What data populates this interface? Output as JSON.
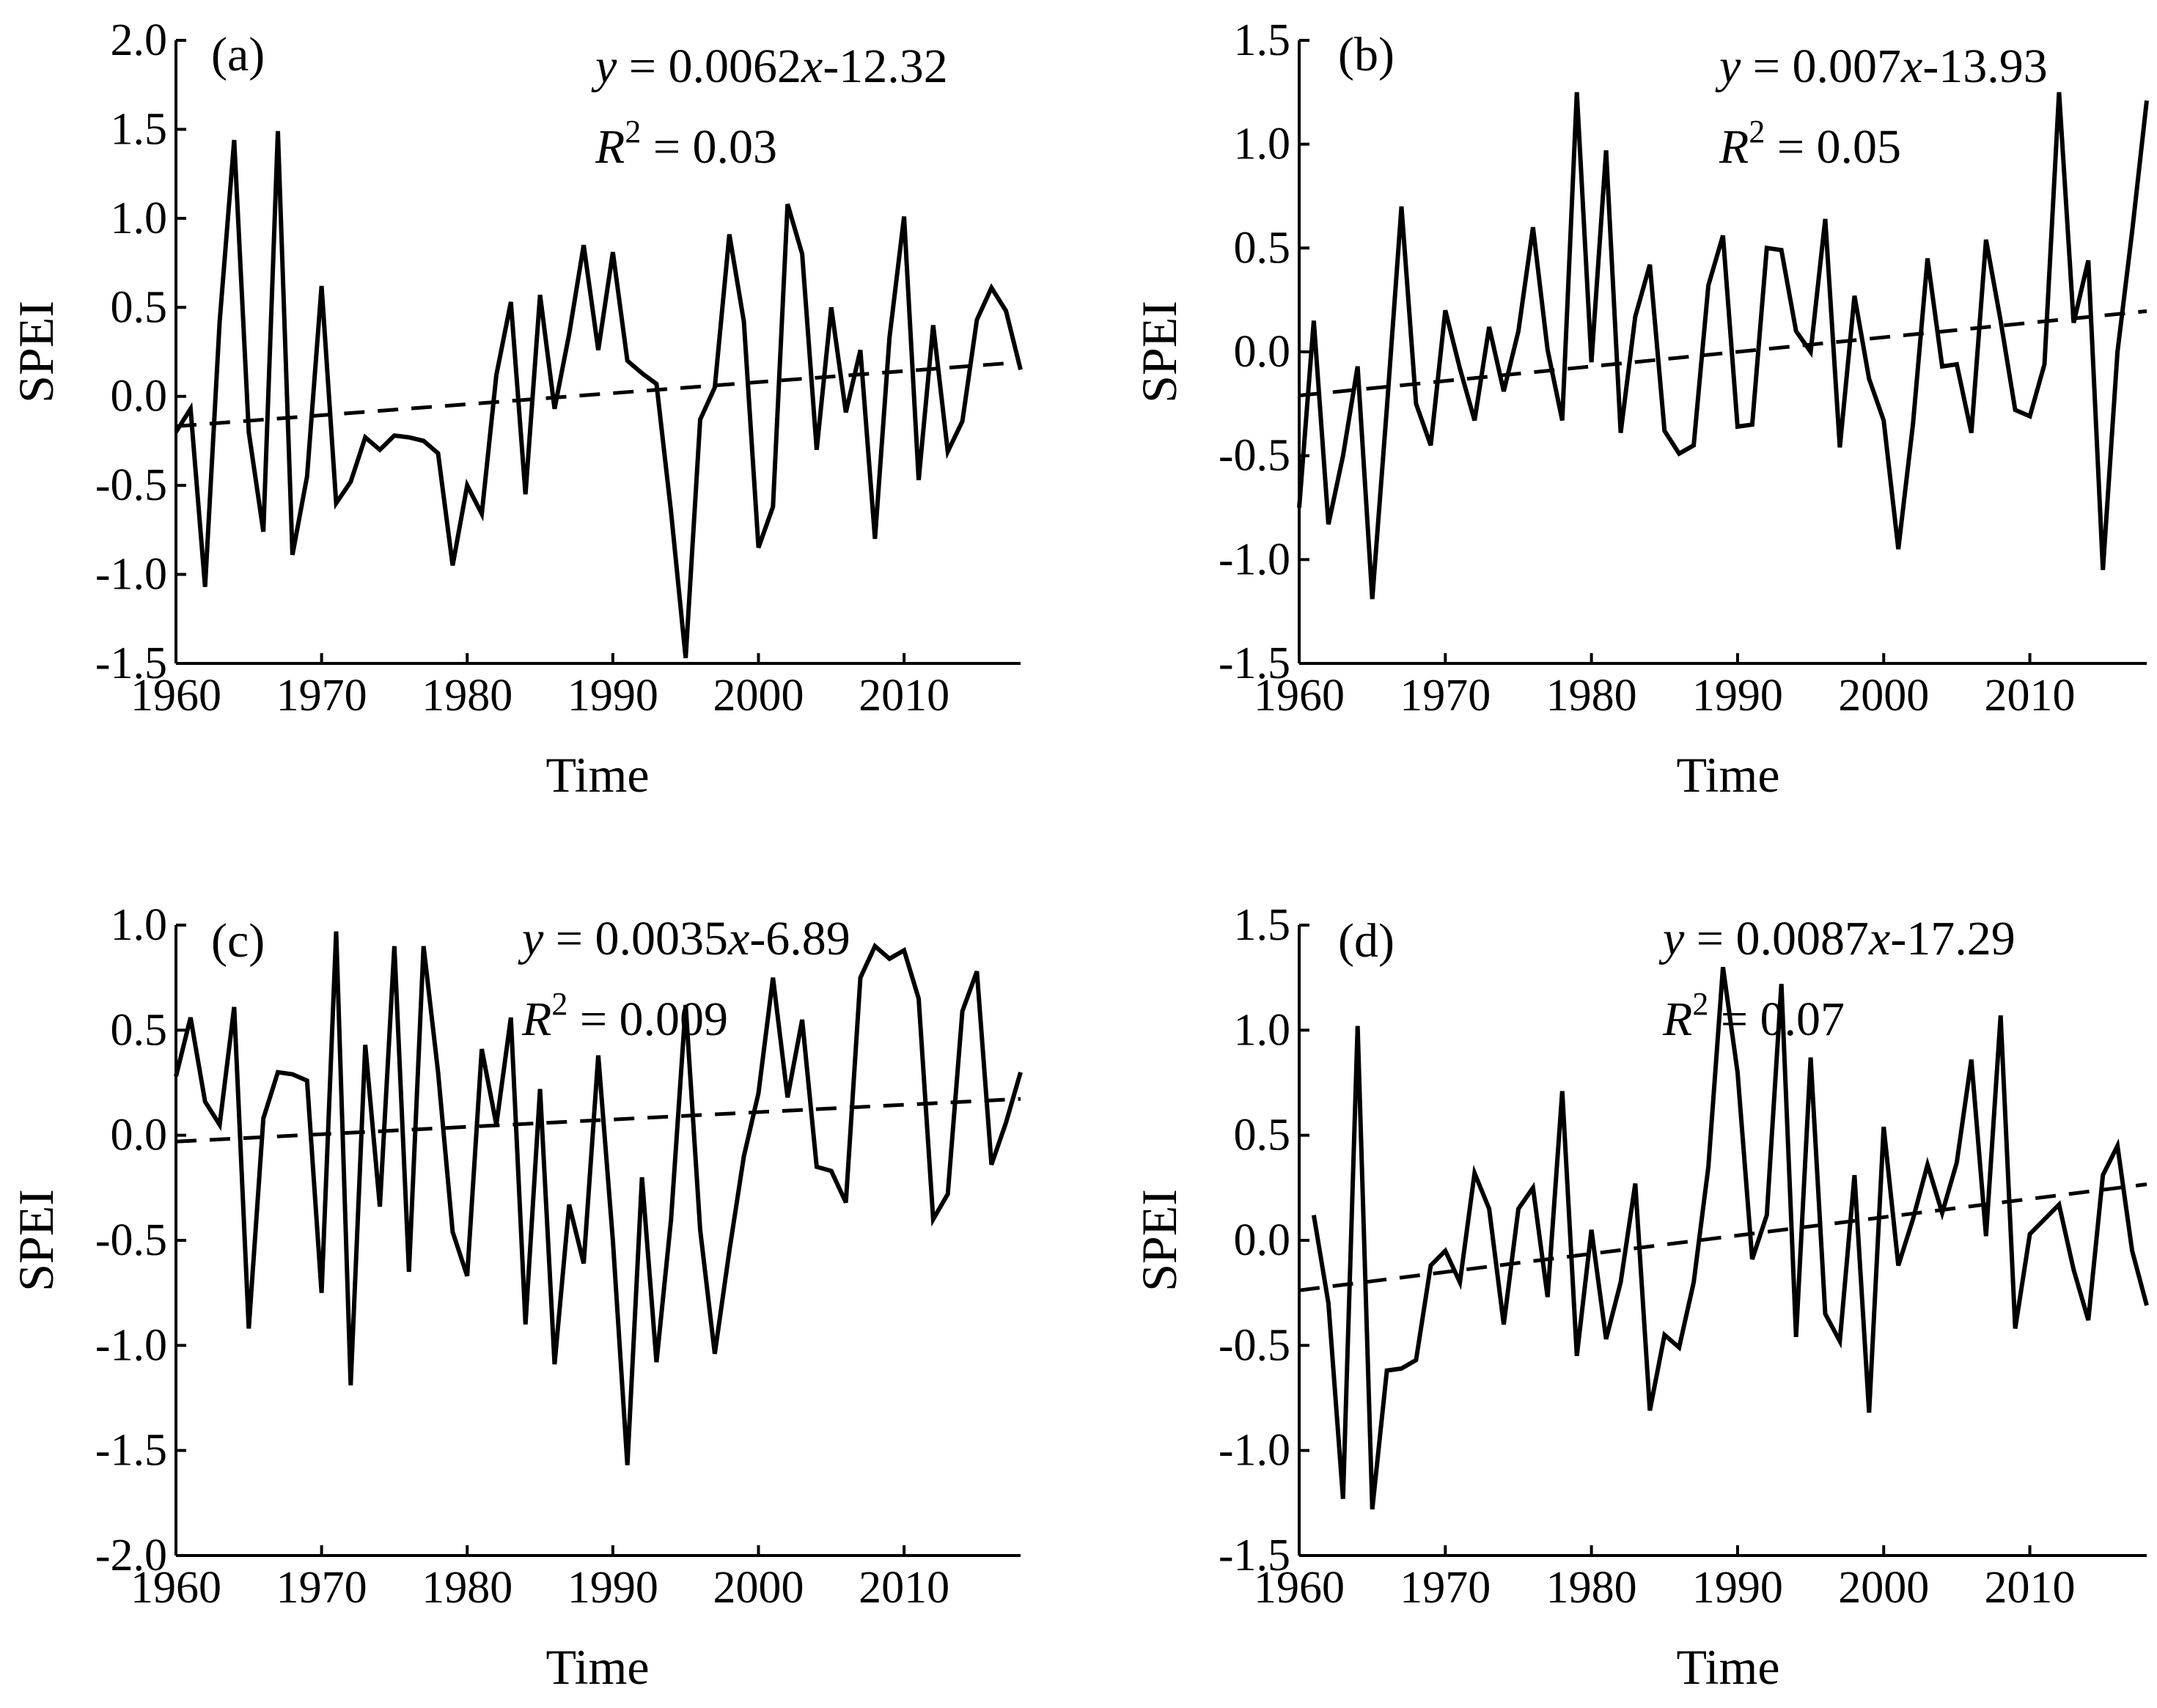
{
  "chart_data": [
    {
      "type": "line",
      "panel_label": "(a)",
      "xlabel": "Time",
      "ylabel": "SPEI",
      "xlim": [
        1960,
        2018
      ],
      "ylim": [
        -1.5,
        2.0
      ],
      "xticks": [
        1960,
        1970,
        1980,
        1990,
        2000,
        2010
      ],
      "xtick_labels": [
        "1960",
        "1970",
        "1980",
        "1990",
        "2000",
        "2010"
      ],
      "yticks": [
        -1.5,
        -1.0,
        -0.5,
        0.0,
        0.5,
        1.0,
        1.5,
        2.0
      ],
      "ytick_labels": [
        "-1.5",
        "-1.0",
        "-0.5",
        "0.0",
        "0.5",
        "1.0",
        "1.5",
        "2.0"
      ],
      "equation": {
        "y": "y",
        "eq": " = 0.0062",
        "x": "x",
        "rest": "-12.32"
      },
      "r2": {
        "R": "R",
        "sup": "2",
        "rest": " = 0.03"
      },
      "trend": {
        "slope": 0.0062,
        "intercept": -12.32
      },
      "series": [
        {
          "name": "SPEI",
          "x": [
            1960,
            1961,
            1962,
            1963,
            1964,
            1965,
            1966,
            1967,
            1968,
            1969,
            1970,
            1971,
            1972,
            1973,
            1974,
            1975,
            1976,
            1977,
            1978,
            1979,
            1980,
            1981,
            1982,
            1983,
            1984,
            1985,
            1986,
            1987,
            1988,
            1989,
            1990,
            1991,
            1992,
            1993,
            1994,
            1995,
            1996,
            1997,
            1998,
            1999,
            2000,
            2001,
            2002,
            2003,
            2004,
            2005,
            2006,
            2007,
            2008,
            2009,
            2010,
            2011,
            2012,
            2013,
            2014,
            2015,
            2016,
            2017,
            2018
          ],
          "values": [
            -0.2,
            -0.07,
            -1.07,
            0.42,
            1.44,
            -0.2,
            -0.76,
            1.49,
            -0.89,
            -0.45,
            0.62,
            -0.6,
            -0.48,
            -0.23,
            -0.3,
            -0.22,
            -0.23,
            -0.25,
            -0.32,
            -0.95,
            -0.5,
            -0.66,
            0.12,
            0.53,
            -0.55,
            0.57,
            -0.07,
            0.35,
            0.85,
            0.26,
            0.81,
            0.2,
            0.13,
            0.07,
            -0.65,
            -1.47,
            -0.13,
            0.05,
            0.91,
            0.42,
            -0.85,
            -0.62,
            1.08,
            0.8,
            -0.3,
            0.5,
            -0.09,
            0.26,
            -0.8,
            0.33,
            1.01,
            -0.47,
            0.4,
            -0.31,
            -0.14,
            0.43,
            0.61,
            0.48,
            0.15
          ]
        }
      ]
    },
    {
      "type": "line",
      "panel_label": "(b)",
      "xlabel": "Time",
      "ylabel": "SPEI",
      "xlim": [
        1960,
        2018
      ],
      "ylim": [
        -1.5,
        1.5
      ],
      "xticks": [
        1960,
        1970,
        1980,
        1990,
        2000,
        2010
      ],
      "xtick_labels": [
        "1960",
        "1970",
        "1980",
        "1990",
        "2000",
        "2010"
      ],
      "yticks": [
        -1.5,
        -1.0,
        -0.5,
        0.0,
        0.5,
        1.0,
        1.5
      ],
      "ytick_labels": [
        "-1.5",
        "-1.0",
        "-0.5",
        "0.0",
        "0.5",
        "1.0",
        "1.5"
      ],
      "equation": {
        "y": "y",
        "eq": " = 0.007",
        "x": "x",
        "rest": "-13.93"
      },
      "r2": {
        "R": "R",
        "sup": "2",
        "rest": " = 0.05"
      },
      "trend": {
        "slope": 0.007,
        "intercept": -13.93
      },
      "series": [
        {
          "name": "SPEI",
          "x": [
            1960,
            1961,
            1962,
            1963,
            1964,
            1965,
            1966,
            1967,
            1968,
            1969,
            1970,
            1971,
            1972,
            1973,
            1974,
            1975,
            1976,
            1977,
            1978,
            1979,
            1980,
            1981,
            1982,
            1983,
            1984,
            1985,
            1986,
            1987,
            1988,
            1989,
            1990,
            1991,
            1992,
            1993,
            1994,
            1995,
            1996,
            1997,
            1998,
            1999,
            2000,
            2001,
            2002,
            2003,
            2004,
            2005,
            2006,
            2007,
            2008,
            2009,
            2010,
            2011,
            2012,
            2013,
            2014,
            2015,
            2016,
            2017,
            2018
          ],
          "values": [
            -0.75,
            0.15,
            -0.83,
            -0.5,
            -0.07,
            -1.19,
            -0.27,
            0.7,
            -0.25,
            -0.45,
            0.2,
            -0.08,
            -0.33,
            0.12,
            -0.19,
            0.1,
            0.6,
            0.01,
            -0.33,
            1.25,
            -0.05,
            0.97,
            -0.39,
            0.17,
            0.42,
            -0.38,
            -0.49,
            -0.45,
            0.32,
            0.56,
            -0.36,
            -0.35,
            0.5,
            0.49,
            0.1,
            0.0,
            0.64,
            -0.46,
            0.27,
            -0.13,
            -0.33,
            -0.95,
            -0.35,
            0.45,
            -0.07,
            -0.06,
            -0.39,
            0.54,
            0.15,
            -0.28,
            -0.31,
            -0.06,
            1.25,
            0.14,
            0.44,
            -1.05,
            0.0,
            0.58,
            1.21
          ]
        }
      ]
    },
    {
      "type": "line",
      "panel_label": "(c)",
      "xlabel": "Time",
      "ylabel": "SPEI",
      "xlim": [
        1960,
        2018
      ],
      "ylim": [
        -2.0,
        1.0
      ],
      "xticks": [
        1960,
        1970,
        1980,
        1990,
        2000,
        2010
      ],
      "xtick_labels": [
        "1960",
        "1970",
        "1980",
        "1990",
        "2000",
        "2010"
      ],
      "yticks": [
        -2.0,
        -1.5,
        -1.0,
        -0.5,
        0.0,
        0.5,
        1.0
      ],
      "ytick_labels": [
        "-2.0",
        "-1.5",
        "-1.0",
        "-0.5",
        "0.0",
        "0.5",
        "1.0"
      ],
      "equation": {
        "y": "y",
        "eq": " = 0.0035",
        "x": "x",
        "rest": "-6.89"
      },
      "r2": {
        "R": "R",
        "sup": "2",
        "rest": " = 0.009"
      },
      "trend": {
        "slope": 0.0035,
        "intercept": -6.89
      },
      "series": [
        {
          "name": "SPEI",
          "x": [
            1960,
            1961,
            1962,
            1963,
            1964,
            1965,
            1966,
            1967,
            1968,
            1969,
            1970,
            1971,
            1972,
            1973,
            1974,
            1975,
            1976,
            1977,
            1978,
            1979,
            1980,
            1981,
            1982,
            1983,
            1984,
            1985,
            1986,
            1987,
            1988,
            1989,
            1990,
            1991,
            1992,
            1993,
            1994,
            1995,
            1996,
            1997,
            1998,
            1999,
            2000,
            2001,
            2002,
            2003,
            2004,
            2005,
            2006,
            2007,
            2008,
            2009,
            2010,
            2011,
            2012,
            2013,
            2014,
            2015,
            2016,
            2017,
            2018
          ],
          "values": [
            0.28,
            0.56,
            0.16,
            0.05,
            0.61,
            -0.92,
            0.08,
            0.3,
            0.29,
            0.26,
            -0.75,
            0.97,
            -1.19,
            0.43,
            -0.34,
            0.9,
            -0.65,
            0.9,
            0.3,
            -0.46,
            -0.67,
            0.41,
            0.05,
            0.56,
            -0.9,
            0.22,
            -1.09,
            -0.33,
            -0.61,
            0.38,
            -0.5,
            -1.57,
            -0.2,
            -1.08,
            -0.4,
            0.62,
            -0.45,
            -1.04,
            -0.55,
            -0.1,
            0.2,
            0.75,
            0.18,
            0.55,
            -0.15,
            -0.17,
            -0.32,
            0.75,
            0.9,
            0.84,
            0.88,
            0.65,
            -0.4,
            -0.28,
            0.59,
            0.78,
            -0.14,
            0.06,
            0.3
          ]
        }
      ]
    },
    {
      "type": "line",
      "panel_label": "(d)",
      "xlabel": "Time",
      "ylabel": "SPEI",
      "xlim": [
        1960,
        2018
      ],
      "ylim": [
        -1.5,
        1.5
      ],
      "xticks": [
        1960,
        1970,
        1980,
        1990,
        2000,
        2010
      ],
      "xtick_labels": [
        "1960",
        "1970",
        "1980",
        "1990",
        "2000",
        "2010"
      ],
      "yticks": [
        -1.5,
        -1.0,
        -0.5,
        0.0,
        0.5,
        1.0,
        1.5
      ],
      "ytick_labels": [
        "-1.5",
        "-1.0",
        "-0.5",
        "0.0",
        "0.5",
        "1.0",
        "1.5"
      ],
      "equation": {
        "y": "y",
        "eq": " = 0.0087",
        "x": "x",
        "rest": "-17.29"
      },
      "r2": {
        "R": "R",
        "sup": "2",
        "rest": " = 0.07"
      },
      "trend": {
        "slope": 0.0087,
        "intercept": -17.29
      },
      "series": [
        {
          "name": "SPEI",
          "x": [
            1961,
            1962,
            1963,
            1964,
            1965,
            1966,
            1967,
            1968,
            1969,
            1970,
            1971,
            1972,
            1973,
            1974,
            1975,
            1976,
            1977,
            1978,
            1979,
            1980,
            1981,
            1982,
            1983,
            1984,
            1985,
            1986,
            1987,
            1988,
            1989,
            1990,
            1991,
            1992,
            1993,
            1994,
            1995,
            1996,
            1997,
            1998,
            1999,
            2000,
            2001,
            2002,
            2003,
            2004,
            2005,
            2006,
            2007,
            2008,
            2009,
            2010,
            2011,
            2012,
            2013,
            2014,
            2015,
            2016,
            2017,
            2018
          ],
          "values": [
            0.12,
            -0.3,
            -1.23,
            1.02,
            -1.28,
            -0.62,
            -0.61,
            -0.57,
            -0.12,
            -0.05,
            -0.2,
            0.32,
            0.15,
            -0.4,
            0.15,
            0.25,
            -0.27,
            0.71,
            -0.55,
            0.05,
            -0.47,
            -0.2,
            0.27,
            -0.81,
            -0.45,
            -0.51,
            -0.2,
            0.35,
            1.3,
            0.8,
            -0.09,
            0.12,
            1.22,
            -0.46,
            0.87,
            -0.35,
            -0.48,
            0.31,
            -0.82,
            0.54,
            -0.12,
            0.1,
            0.36,
            0.13,
            0.37,
            0.86,
            0.02,
            1.07,
            -0.42,
            0.03,
            0.1,
            0.17,
            -0.14,
            -0.38,
            0.31,
            0.45,
            -0.05,
            -0.31
          ]
        }
      ]
    }
  ]
}
